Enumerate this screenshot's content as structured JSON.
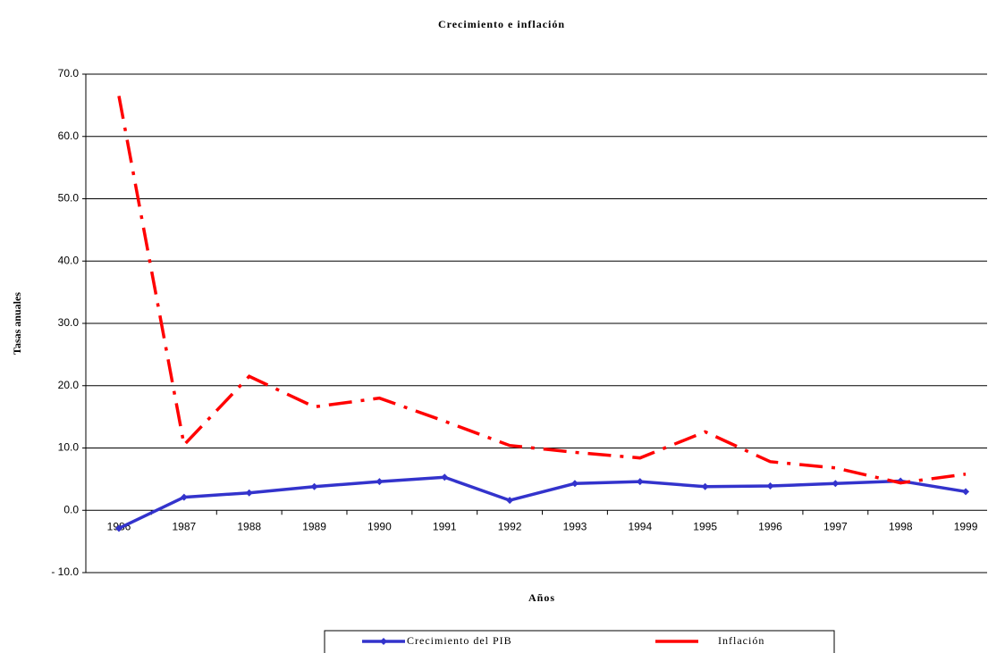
{
  "chart_data": {
    "type": "line",
    "title": "Crecimiento e inflación",
    "x_label": "Años",
    "y_label": "Tasas anuales",
    "categories": [
      "1986",
      "1987",
      "1988",
      "1989",
      "1990",
      "1991",
      "1992",
      "1993",
      "1994",
      "1995",
      "1996",
      "1997",
      "1998",
      "1999"
    ],
    "series": [
      {
        "name": "Crecimiento del PIB",
        "color": "#3333cc",
        "values": [
          -2.9,
          2.1,
          2.8,
          3.8,
          4.6,
          5.3,
          1.6,
          4.3,
          4.6,
          3.8,
          3.9,
          4.3,
          4.7,
          3.0
        ]
      },
      {
        "name": "Inflación",
        "color": "#ff0000",
        "values": [
          66.5,
          10.5,
          21.5,
          16.6,
          18.0,
          14.3,
          10.4,
          9.3,
          8.4,
          12.6,
          7.8,
          6.8,
          4.4,
          5.8
        ]
      }
    ],
    "ylim": [
      -10,
      70
    ],
    "yticks": [
      {
        "value": -10,
        "label": "- 10.0"
      },
      {
        "value": 0,
        "label": "0.0"
      },
      {
        "value": 10,
        "label": "10.0"
      },
      {
        "value": 20,
        "label": "20.0"
      },
      {
        "value": 30,
        "label": "30.0"
      },
      {
        "value": 40,
        "label": "40.0"
      },
      {
        "value": 50,
        "label": "50.0"
      },
      {
        "value": 60,
        "label": "60.0"
      },
      {
        "value": 70,
        "label": "70.0"
      }
    ],
    "grid": true
  }
}
